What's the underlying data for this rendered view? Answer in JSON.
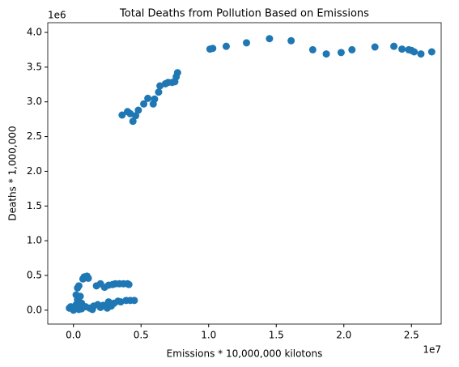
{
  "chart_data": {
    "type": "scatter",
    "title": "Total Deaths from Pollution Based on Emissions",
    "x_label": "Emissions * 10,000,000 kilotons",
    "y_label": "Deaths * 1,000,000",
    "x_offset_label": "1e7",
    "y_offset_label": "1e6",
    "color": "#1f77b4",
    "xlim": [
      -1900000,
      27200000
    ],
    "ylim": [
      -200000,
      4140000
    ],
    "xticks": [
      {
        "value": 0,
        "label": "0.0"
      },
      {
        "value": 5000000,
        "label": "0.5"
      },
      {
        "value": 10000000,
        "label": "1.0"
      },
      {
        "value": 15000000,
        "label": "1.5"
      },
      {
        "value": 20000000,
        "label": "2.0"
      },
      {
        "value": 25000000,
        "label": "2.5"
      }
    ],
    "yticks": [
      {
        "value": 0,
        "label": "0.0"
      },
      {
        "value": 500000,
        "label": "0.5"
      },
      {
        "value": 1000000,
        "label": "1.0"
      },
      {
        "value": 1500000,
        "label": "1.5"
      },
      {
        "value": 2000000,
        "label": "2.0"
      },
      {
        "value": 2500000,
        "label": "2.5"
      },
      {
        "value": 3000000,
        "label": "3.0"
      },
      {
        "value": 3500000,
        "label": "3.5"
      },
      {
        "value": 4000000,
        "label": "4.0"
      }
    ],
    "x": [
      3600000,
      4000000,
      4200000,
      4400000,
      4600000,
      4800000,
      5200000,
      5500000,
      5900000,
      6000000,
      6300000,
      6400000,
      6800000,
      7000000,
      7300000,
      7500000,
      7600000,
      7700000,
      10100000,
      10300000,
      11300000,
      12800000,
      14500000,
      16100000,
      17700000,
      18700000,
      19800000,
      20600000,
      22300000,
      23700000,
      24300000,
      24800000,
      25000000,
      25200000,
      25700000,
      26500000,
      -300000,
      -200000,
      0,
      100000,
      200000,
      300000,
      200000,
      300000,
      400000,
      500000,
      600000,
      700000,
      800000,
      900000,
      1000000,
      1100000,
      600000,
      900000,
      1200000,
      1500000,
      1800000,
      2000000,
      2200000,
      2500000,
      2800000,
      3000000,
      3300000,
      3500000,
      1700000,
      2000000,
      2300000,
      2600000,
      2900000,
      3100000,
      3400000,
      3700000,
      4000000,
      4100000,
      3900000,
      4200000,
      4500000,
      1400000,
      400000,
      2600000
    ],
    "values": [
      2810000,
      2860000,
      2830000,
      2720000,
      2800000,
      2880000,
      2970000,
      3050000,
      2970000,
      3040000,
      3140000,
      3230000,
      3260000,
      3280000,
      3280000,
      3290000,
      3360000,
      3420000,
      3760000,
      3770000,
      3800000,
      3850000,
      3910000,
      3880000,
      3750000,
      3690000,
      3710000,
      3750000,
      3790000,
      3800000,
      3760000,
      3750000,
      3740000,
      3720000,
      3690000,
      3720000,
      30000,
      50000,
      0,
      20000,
      80000,
      150000,
      220000,
      320000,
      350000,
      200000,
      100000,
      450000,
      480000,
      470000,
      490000,
      460000,
      20000,
      50000,
      30000,
      60000,
      80000,
      40000,
      70000,
      30000,
      60000,
      100000,
      130000,
      120000,
      350000,
      380000,
      330000,
      360000,
      370000,
      380000,
      380000,
      380000,
      380000,
      370000,
      140000,
      140000,
      140000,
      10000,
      10000,
      120000
    ]
  }
}
